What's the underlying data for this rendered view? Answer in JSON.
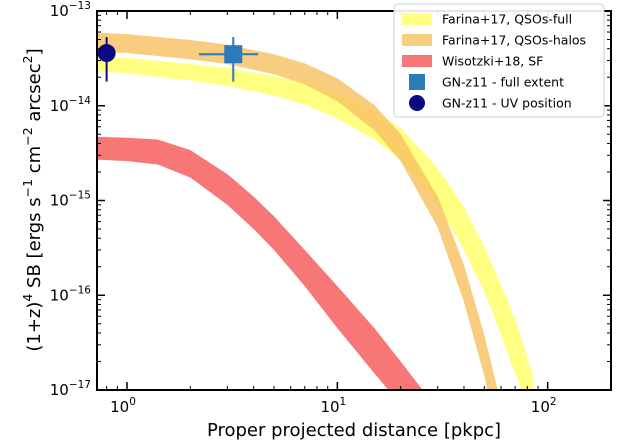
{
  "chart_data": {
    "type": "area",
    "title": "",
    "xlabel": "Proper projected distance [pkpc]",
    "ylabel": {
      "parts": [
        "(1+z)",
        "4",
        " SB [ergs s",
        "−1",
        " cm",
        "−2",
        " arcsec",
        "2",
        "]"
      ]
    },
    "xscale": "log",
    "yscale": "log",
    "xlim": [
      0.72,
      200
    ],
    "ylim": [
      1e-17,
      1e-13
    ],
    "x_ticks": [
      {
        "value": 1,
        "base": "10",
        "exp": "0"
      },
      {
        "value": 10,
        "base": "10",
        "exp": "1"
      },
      {
        "value": 100,
        "base": "10",
        "exp": "2"
      }
    ],
    "y_ticks": [
      {
        "value": 1e-17,
        "base": "10",
        "exp": "−17"
      },
      {
        "value": 1e-16,
        "base": "10",
        "exp": "−16"
      },
      {
        "value": 1e-15,
        "base": "10",
        "exp": "−15"
      },
      {
        "value": 1e-14,
        "base": "10",
        "exp": "−14"
      },
      {
        "value": 1e-13,
        "base": "10",
        "exp": "−13"
      }
    ],
    "grid": false,
    "legend_position": "top-right",
    "series": [
      {
        "name": "Farina+17, QSOs-full",
        "kind": "band",
        "color": "#ffff66",
        "opacity": 0.82,
        "x": [
          0.72,
          1,
          2,
          3,
          5,
          7,
          10,
          15,
          20,
          30,
          40,
          50,
          60,
          70,
          75,
          80,
          85
        ],
        "y_low": [
          2.3e-14,
          2.2e-14,
          1.85e-14,
          1.62e-14,
          1.28e-14,
          1.03e-14,
          7.3e-15,
          4.4e-15,
          2.7e-15,
          9e-16,
          3e-16,
          1.1e-16,
          3.8e-17,
          1.5e-17,
          1e-17,
          6e-18,
          4e-18
        ],
        "y_high": [
          3.3e-14,
          3.2e-14,
          2.75e-14,
          2.5e-14,
          2.05e-14,
          1.75e-14,
          1.35e-14,
          8.8e-15,
          5.8e-15,
          2.2e-15,
          8.5e-16,
          3.2e-16,
          1.3e-16,
          5.5e-17,
          3.5e-17,
          2.2e-17,
          1.4e-17
        ]
      },
      {
        "name": "Farina+17, QSOs-halos",
        "kind": "band",
        "color": "#f8c060",
        "opacity": 0.8,
        "x": [
          0.72,
          1,
          2,
          3,
          5,
          7,
          10,
          15,
          20,
          30,
          40,
          50,
          55,
          60
        ],
        "y_low": [
          3.7e-14,
          3.6e-14,
          3.1e-14,
          2.75e-14,
          2.15e-14,
          1.68e-14,
          1.12e-14,
          5.5e-15,
          2.6e-15,
          5.2e-16,
          8.5e-17,
          1.4e-17,
          5e-18,
          2e-18
        ],
        "y_high": [
          5.9e-14,
          5.7e-14,
          4.95e-14,
          4.4e-14,
          3.5e-14,
          2.8e-14,
          1.95e-14,
          1.02e-14,
          5e-15,
          1.1e-15,
          2.1e-16,
          3.8e-17,
          1.6e-17,
          7e-18
        ]
      },
      {
        "name": "Wisotzki+18, SF",
        "kind": "band",
        "color": "#f77777",
        "opacity": 1,
        "x": [
          0.72,
          1,
          1.4,
          2,
          3,
          4,
          5,
          7,
          10,
          15,
          20,
          25,
          30
        ],
        "y_low": [
          2.7e-15,
          2.6e-15,
          2.4e-15,
          1.75e-15,
          9e-16,
          5e-16,
          3e-16,
          1.25e-16,
          4.5e-17,
          1.5e-17,
          7e-18,
          4e-18,
          2.5e-18
        ],
        "y_high": [
          4.7e-15,
          4.6e-15,
          4.4e-15,
          3.4e-15,
          1.9e-15,
          1.1e-15,
          6.8e-16,
          3e-16,
          1.25e-16,
          4.5e-17,
          2e-17,
          1.05e-17,
          6e-18
        ]
      },
      {
        "name": "GN-z11 - full extent",
        "kind": "point",
        "marker": "square",
        "color": "#2b7bb9",
        "x": 3.2,
        "y": 3.5e-14,
        "y_err_low": 1.8e-14,
        "y_err_high": 5.3e-14,
        "x_err_low": 2.2,
        "x_err_high": 4.2
      },
      {
        "name": "GN-z11 - UV position",
        "kind": "point",
        "marker": "circle",
        "color": "#0a0a80",
        "x": 0.8,
        "y": 3.6e-14,
        "y_err_low": 1.8e-14,
        "y_err_high": 5.3e-14
      }
    ]
  }
}
